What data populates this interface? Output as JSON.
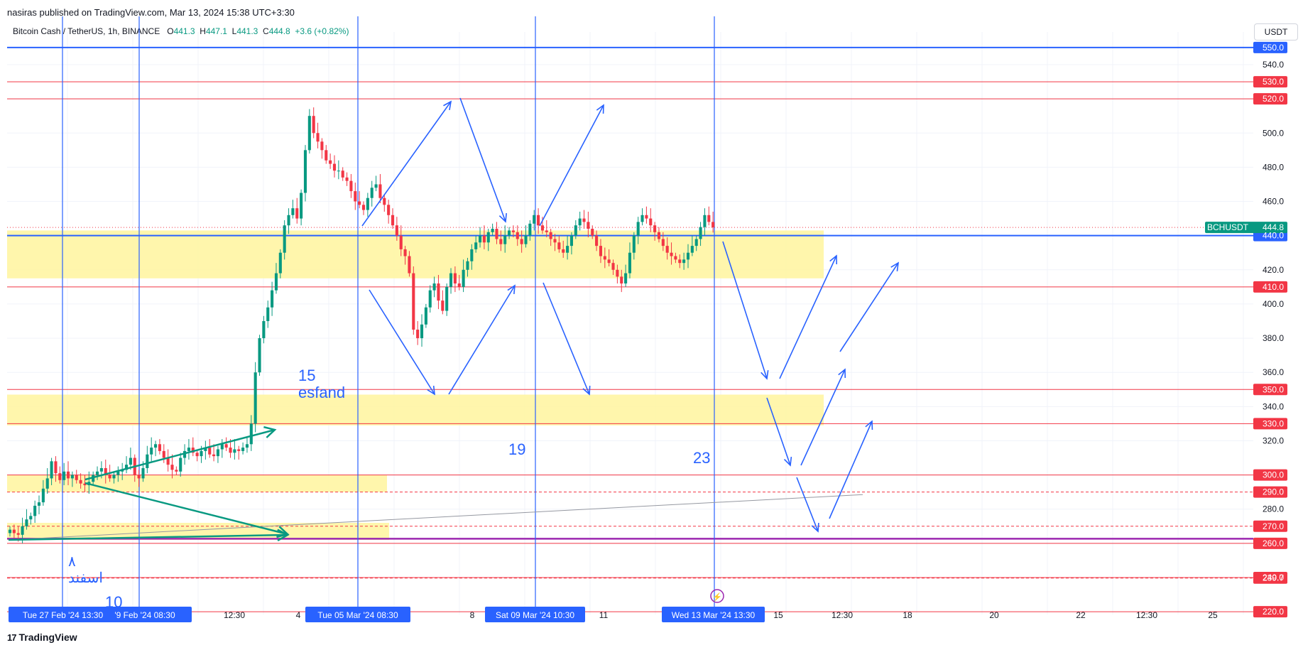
{
  "header": {
    "publisher": "nasiras published on TradingView.com, Mar 13, 2024 15:38 UTC+3:30",
    "symbol": "Bitcoin Cash / TetherUS, 1h, BINANCE",
    "ohlc": {
      "o_label": "O",
      "o": "441.3",
      "h_label": "H",
      "h": "447.1",
      "l_label": "L",
      "l": "441.3",
      "c_label": "C",
      "c": "444.8",
      "change": "+3.6 (+0.82%)"
    },
    "currency": "USDT"
  },
  "footer": {
    "brand": "TradingView",
    "logo": "17"
  },
  "colors": {
    "up": "#089981",
    "down": "#f23645",
    "blue": "#2962ff",
    "red": "#f23645",
    "zone": "#fff59d",
    "green_arrow": "#089981",
    "purple": "#9c27b0",
    "price_tag": "#089981"
  },
  "chart_data": {
    "type": "candlestick",
    "symbol": "BCHUSDT",
    "interval": "1h",
    "ylim": [
      215,
      555
    ],
    "y_ticks": [
      "540.0",
      "500.0",
      "480.0",
      "460.0",
      "420.0",
      "400.0",
      "380.0",
      "360.0",
      "340.0",
      "320.0",
      "280.0"
    ],
    "x_ticks": [
      "12:30",
      "4",
      "8",
      "11",
      "15",
      "12:30",
      "18",
      "20",
      "22",
      "12:30",
      "25"
    ],
    "x_ticks_highlighted": [
      "Tue 27 Feb '24   13:30",
      "'9 Feb '24   08:30",
      "Tue 05 Mar '24   08:30",
      "Sat 09 Mar '24   10:30",
      "Wed 13 Mar '24   13:30"
    ],
    "last_price": {
      "label": "BCHUSDT",
      "value": "444.8"
    },
    "horizontal_levels": [
      {
        "value": 550,
        "label": "550.0",
        "color": "blue"
      },
      {
        "value": 530,
        "label": "530.0",
        "color": "red"
      },
      {
        "value": 520,
        "label": "520.0",
        "color": "red"
      },
      {
        "value": 440,
        "label": "440.0",
        "color": "blue"
      },
      {
        "value": 410,
        "label": "410.0",
        "color": "red"
      },
      {
        "value": 350,
        "label": "350.0",
        "color": "red"
      },
      {
        "value": 330,
        "label": "330.0",
        "color": "red"
      },
      {
        "value": 300,
        "label": "300.0",
        "color": "red"
      },
      {
        "value": 290,
        "label": "290.0",
        "color": "red",
        "dashed": true
      },
      {
        "value": 270,
        "label": "270.0",
        "color": "red",
        "dashed": true
      },
      {
        "value": 260,
        "label": "260.0",
        "color": "red"
      },
      {
        "value": 240,
        "label": "240.0",
        "color": "red"
      },
      {
        "value": 239.7,
        "label": "239.7",
        "color": "red",
        "dashed": true
      },
      {
        "value": 220,
        "label": "220.0",
        "color": "red"
      }
    ],
    "zones": [
      {
        "from": 415,
        "to": 443
      },
      {
        "from": 329,
        "to": 347
      },
      {
        "from": 290,
        "to": 300
      },
      {
        "from": 262,
        "to": 272
      }
    ],
    "candles_close": [
      268,
      266,
      265,
      270,
      274,
      276,
      282,
      284,
      292,
      298,
      308,
      301,
      297,
      302,
      298,
      300,
      297,
      295,
      294,
      296,
      300,
      302,
      304,
      300,
      298,
      300,
      302,
      303,
      306,
      310,
      300,
      298,
      304,
      312,
      316,
      318,
      314,
      310,
      306,
      303,
      302,
      310,
      314,
      316,
      313,
      311,
      314,
      316,
      312,
      311,
      315,
      318,
      316,
      313,
      315,
      314,
      316,
      318,
      330,
      360,
      380,
      390,
      398,
      408,
      418,
      430,
      446,
      452,
      456,
      450,
      465,
      490,
      510,
      500,
      495,
      490,
      484,
      482,
      478,
      478,
      474,
      472,
      466,
      460,
      458,
      455,
      462,
      468,
      470,
      462,
      458,
      452,
      446,
      440,
      432,
      428,
      418,
      385,
      380,
      388,
      398,
      408,
      412,
      402,
      396,
      410,
      418,
      412,
      410,
      420,
      425,
      432,
      436,
      440,
      436,
      442,
      444,
      438,
      435,
      440,
      443,
      442,
      438,
      435,
      440,
      447,
      452,
      446,
      443,
      442,
      438,
      436,
      432,
      430,
      434,
      440,
      446,
      450,
      448,
      444,
      440,
      434,
      428,
      426,
      424,
      420,
      416,
      412,
      418,
      430,
      440,
      448,
      452,
      450,
      446,
      442,
      438,
      434,
      430,
      428,
      426,
      424,
      426,
      430,
      434,
      438,
      445,
      452,
      448,
      444.8
    ]
  },
  "annotations": {
    "label_15": "15",
    "label_esfand": "esfand",
    "label_19": "19",
    "label_23": "23",
    "label_10": "10",
    "label_8": "۸",
    "label_esfand_fa": "اسفند"
  }
}
